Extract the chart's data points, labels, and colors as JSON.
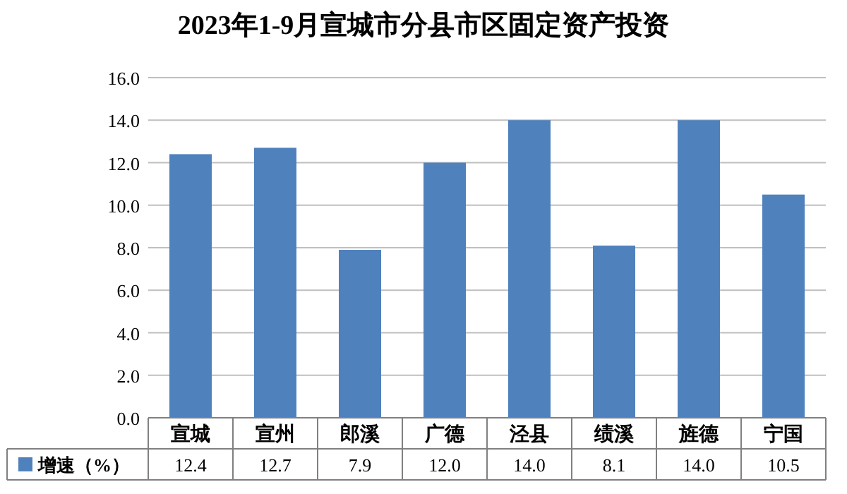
{
  "chart_data": {
    "type": "bar",
    "title": "2023年1-9月宣城市分县市区固定资产投资",
    "categories": [
      "宣城",
      "宣州",
      "郎溪",
      "广德",
      "泾县",
      "绩溪",
      "旌德",
      "宁国"
    ],
    "series": [
      {
        "name": "增速（%）",
        "color": "#4f81bd",
        "values": [
          12.4,
          12.7,
          7.9,
          12.0,
          14.0,
          8.1,
          14.0,
          10.5
        ],
        "value_labels": [
          "12.4",
          "12.7",
          "7.9",
          "12.0",
          "14.0",
          "8.1",
          "14.0",
          "10.5"
        ]
      }
    ],
    "ylim": [
      0,
      16
    ],
    "yticks": [
      {
        "value": 0,
        "label": "0.0"
      },
      {
        "value": 2,
        "label": "2.0"
      },
      {
        "value": 4,
        "label": "4.0"
      },
      {
        "value": 6,
        "label": "6.0"
      },
      {
        "value": 8,
        "label": "8.0"
      },
      {
        "value": 10,
        "label": "10.0"
      },
      {
        "value": 12,
        "label": "12.0"
      },
      {
        "value": 14,
        "label": "14.0"
      },
      {
        "value": 16,
        "label": "16.0"
      }
    ],
    "grid": "y",
    "legend": "bottom"
  }
}
